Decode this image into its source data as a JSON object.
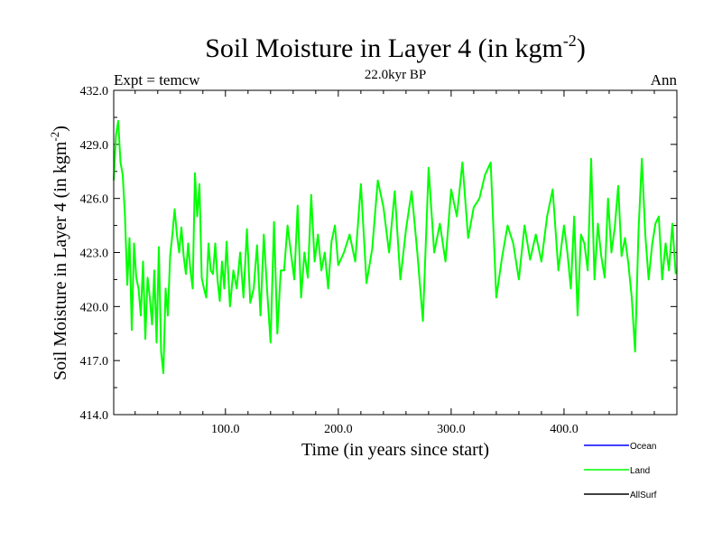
{
  "chart_data": {
    "type": "line",
    "title": "Soil Moisture in Layer 4 (in kgm",
    "title_sup": "-2",
    "title_close": ")",
    "subtitle": "22.0kyr BP",
    "left_label": "Expt = temcw",
    "right_label": "Ann",
    "xlabel": "Time (in years since start)",
    "ylabel": "Soil Moisture in Layer 4 (in kgm",
    "ylabel_sup": "-2",
    "ylabel_close": ")",
    "xlim": [
      1,
      500
    ],
    "ylim": [
      414.0,
      432.0
    ],
    "xticks": [
      100,
      200,
      300,
      400
    ],
    "xtick_labels": [
      "100.0",
      "200.0",
      "300.0",
      "400.0"
    ],
    "yticks": [
      414,
      417,
      420,
      423,
      426,
      429,
      432
    ],
    "ytick_labels": [
      "414.0",
      "417.0",
      "420.0",
      "423.0",
      "426.0",
      "429.0",
      "432.0"
    ],
    "legend": [
      {
        "name": "Ocean",
        "color": "#0000ff"
      },
      {
        "name": "Land",
        "color": "#00ff00"
      },
      {
        "name": "AllSurf",
        "color": "#000000"
      }
    ],
    "series": [
      {
        "name": "Land",
        "color": "#00ff00",
        "x": [
          1,
          3,
          5,
          7,
          9,
          11,
          13,
          15,
          17,
          19,
          21,
          23,
          25,
          27,
          29,
          31,
          33,
          35,
          37,
          39,
          41,
          43,
          45,
          47,
          49,
          51,
          53,
          55,
          57,
          59,
          61,
          63,
          65,
          67,
          69,
          71,
          73,
          75,
          77,
          79,
          81,
          83,
          85,
          87,
          89,
          91,
          93,
          95,
          97,
          99,
          101,
          104,
          107,
          110,
          113,
          116,
          119,
          122,
          125,
          128,
          131,
          134,
          137,
          140,
          143,
          146,
          149,
          152,
          155,
          158,
          161,
          164,
          167,
          170,
          173,
          176,
          179,
          182,
          185,
          188,
          191,
          194,
          197,
          200,
          205,
          210,
          215,
          220,
          225,
          230,
          235,
          240,
          245,
          250,
          255,
          260,
          265,
          270,
          275,
          280,
          285,
          290,
          295,
          300,
          305,
          310,
          315,
          320,
          325,
          330,
          335,
          340,
          345,
          350,
          355,
          360,
          365,
          370,
          375,
          380,
          385,
          390,
          395,
          400,
          403,
          406,
          409,
          412,
          415,
          418,
          421,
          424,
          427,
          430,
          433,
          436,
          439,
          442,
          445,
          448,
          451,
          454,
          457,
          460,
          463,
          466,
          469,
          472,
          475,
          478,
          481,
          484,
          487,
          490,
          493,
          496,
          499
        ],
        "values": [
          427.0,
          429.5,
          430.3,
          428.0,
          427.3,
          425.0,
          421.2,
          423.8,
          418.7,
          423.5,
          421.6,
          421.0,
          419.5,
          422.5,
          418.2,
          421.6,
          420.5,
          419.0,
          422.0,
          418.0,
          423.3,
          417.5,
          416.3,
          421.0,
          419.5,
          422.8,
          424.0,
          425.4,
          424.0,
          423.0,
          424.4,
          422.8,
          421.8,
          423.5,
          422.0,
          421.0,
          427.4,
          425.0,
          426.8,
          421.6,
          421.0,
          420.5,
          423.5,
          422.0,
          421.8,
          423.5,
          421.5,
          420.3,
          422.5,
          421.0,
          423.6,
          420.0,
          422.0,
          421.0,
          423.0,
          420.5,
          424.3,
          420.2,
          421.0,
          423.4,
          419.5,
          424.0,
          420.8,
          418.0,
          424.7,
          418.5,
          422.0,
          422.0,
          424.5,
          423.0,
          421.5,
          425.6,
          420.5,
          423.0,
          421.6,
          426.2,
          422.5,
          424.0,
          422.0,
          423.0,
          421.0,
          423.6,
          424.5,
          422.3,
          423.0,
          424.0,
          422.5,
          426.8,
          421.3,
          423.2,
          427.0,
          425.5,
          423.0,
          426.4,
          421.5,
          424.3,
          426.4,
          423.0,
          419.2,
          427.7,
          423.0,
          424.6,
          422.5,
          426.5,
          425.0,
          428.0,
          423.8,
          425.5,
          426.0,
          427.3,
          428.0,
          420.5,
          422.7,
          424.5,
          423.5,
          421.5,
          424.5,
          422.6,
          424.0,
          422.5,
          425.0,
          426.5,
          422.0,
          424.5,
          423.0,
          421.0,
          425.0,
          419.5,
          424.0,
          423.5,
          422.0,
          428.2,
          421.5,
          424.6,
          422.8,
          421.6,
          426.0,
          423.0,
          424.4,
          426.7,
          422.8,
          423.8,
          422.4,
          420.5,
          417.5,
          424.2,
          428.2,
          424.0,
          421.5,
          423.4,
          424.6,
          425.0,
          421.5,
          423.5,
          422.0,
          424.6,
          421.8
        ]
      }
    ]
  }
}
